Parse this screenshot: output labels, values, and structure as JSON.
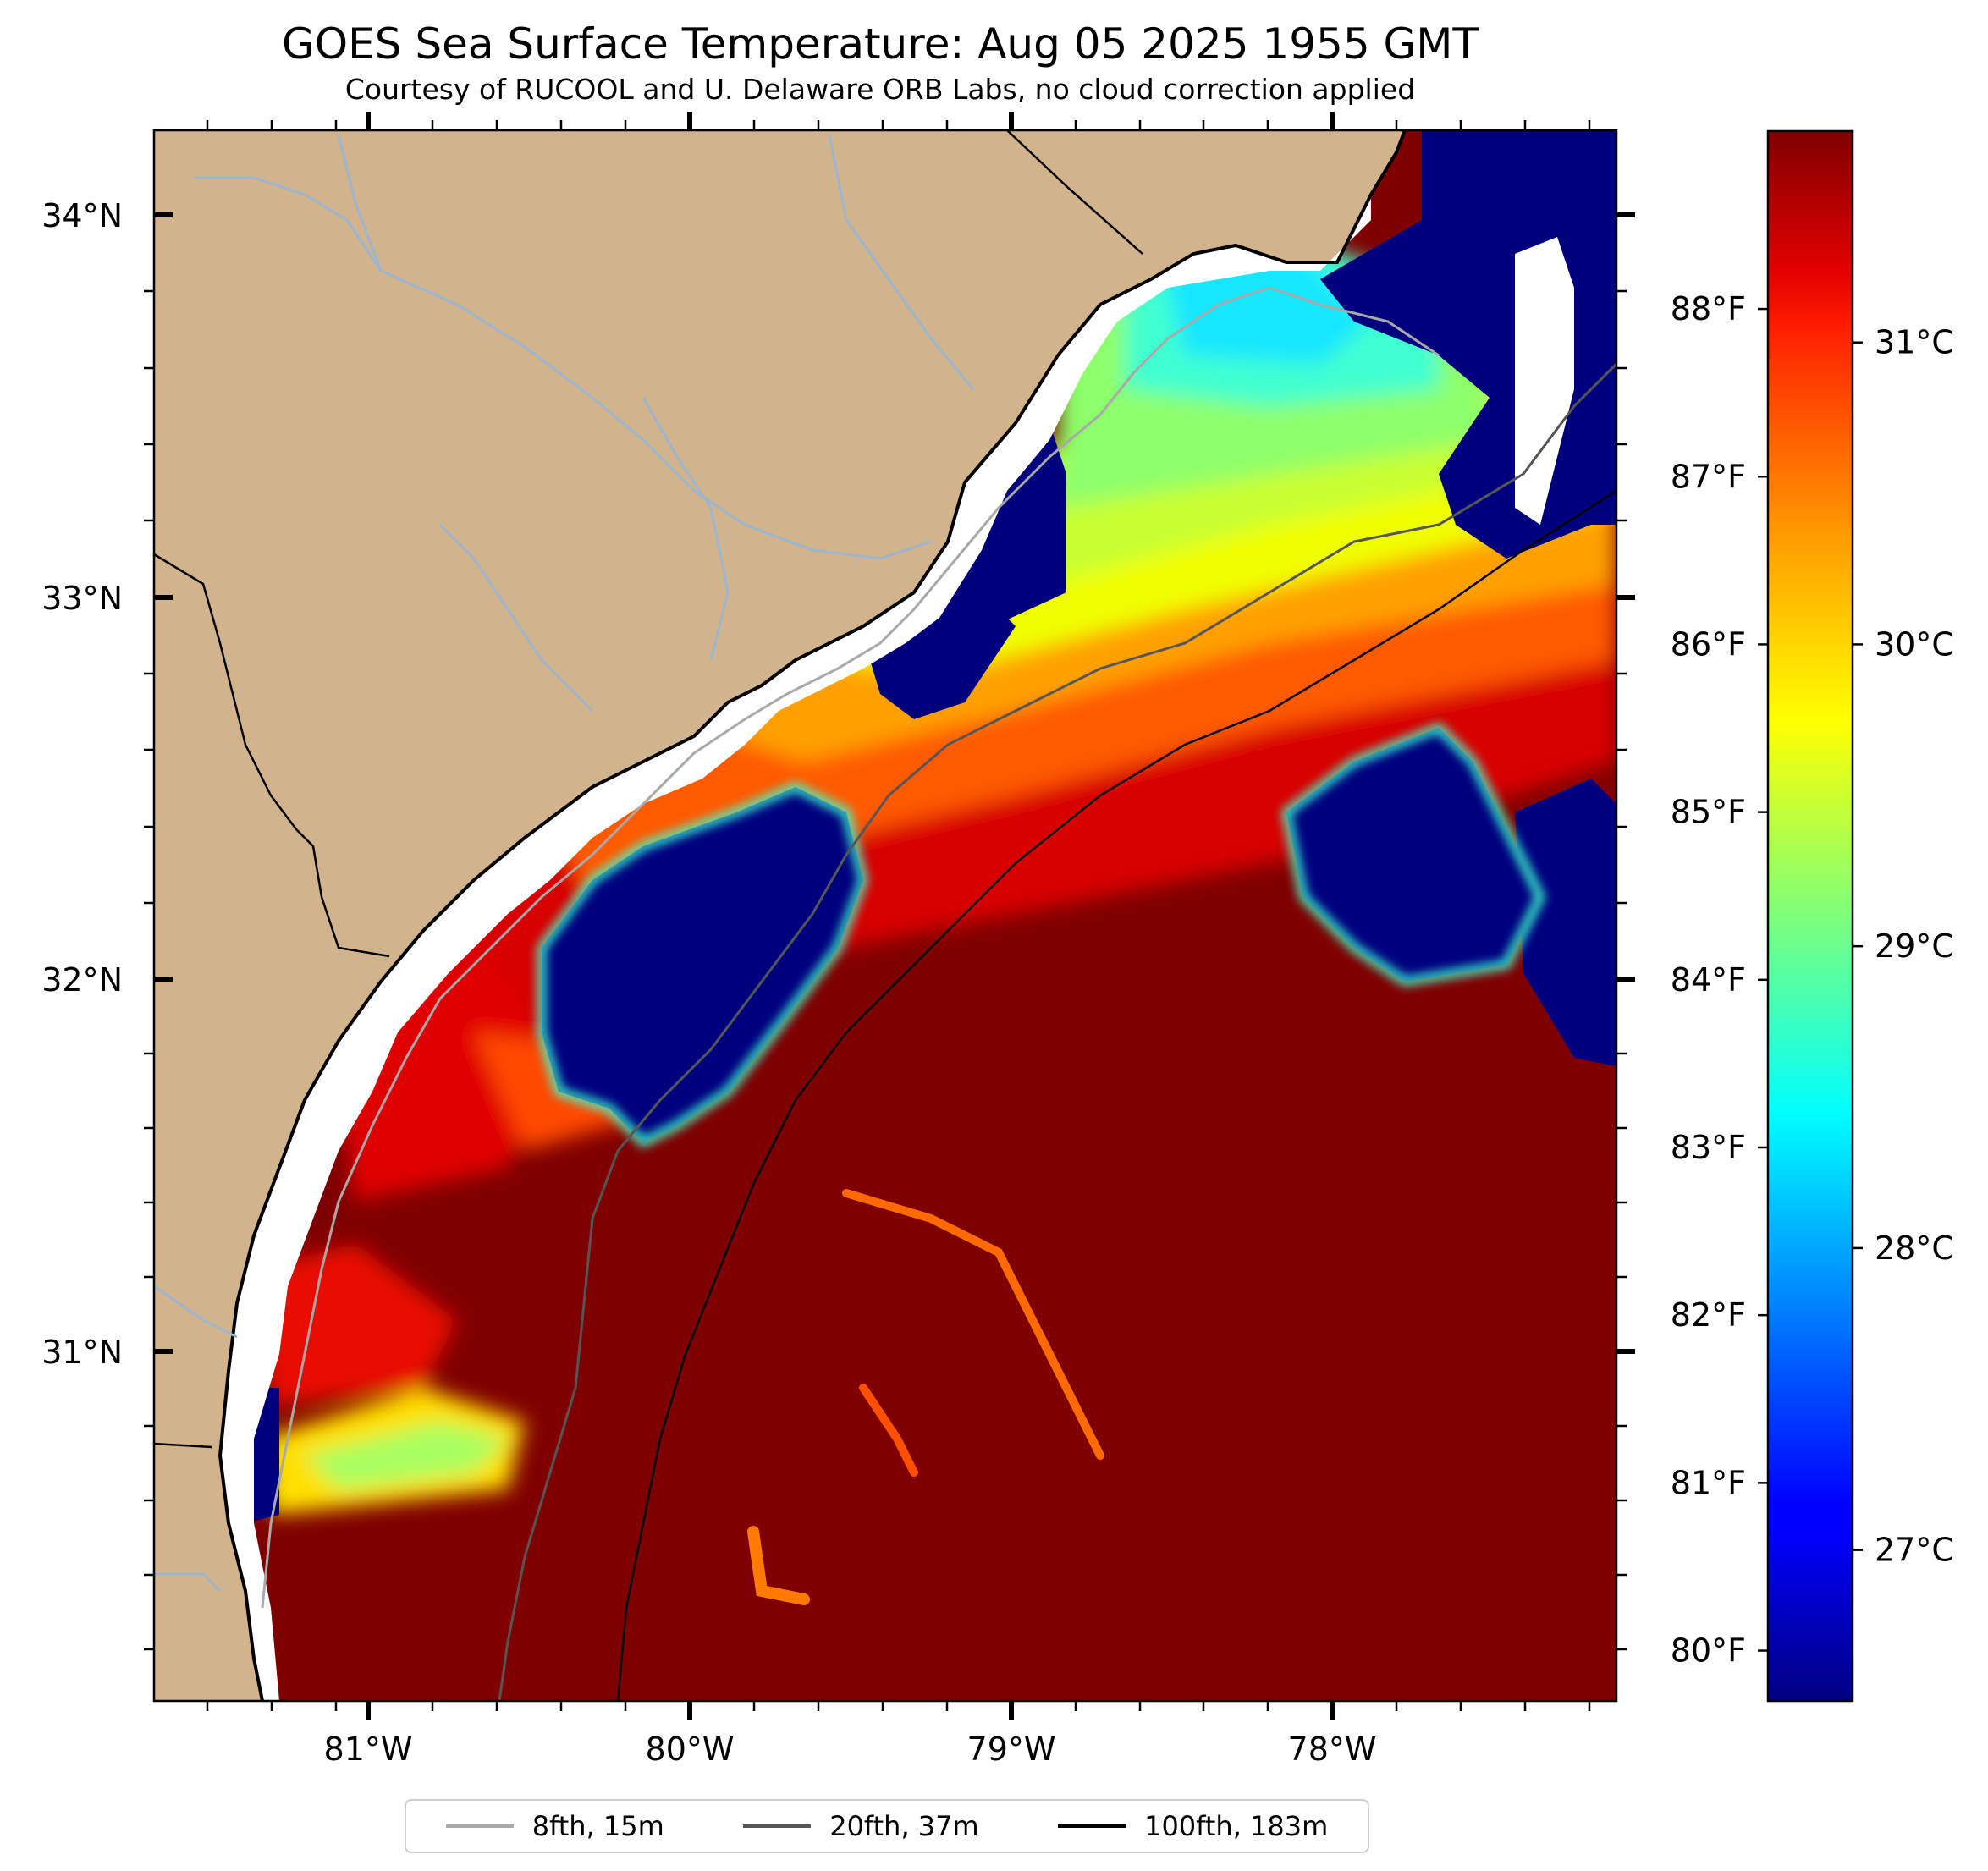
{
  "title": "GOES Sea Surface Temperature: Aug 05 2025 1955 GMT",
  "subtitle": "Courtesy of RUCOOL and U. Delaware ORB Labs, no cloud correction applied",
  "map": {
    "lon_range": [
      -81.67,
      -77.12
    ],
    "lat_range": [
      30.2,
      34.2
    ],
    "lat_labels": [
      "34°N",
      "33°N",
      "32°N",
      "31°N"
    ],
    "lon_labels": [
      "81°W",
      "80°W",
      "79°W",
      "78°W"
    ],
    "land_color": "#d2b48c",
    "river_color": "#9db5cf",
    "colormap": "jet"
  },
  "colorbar": {
    "celsius_labels": [
      "31°C",
      "30°C",
      "29°C",
      "28°C",
      "27°C"
    ],
    "celsius_values": [
      31,
      30,
      29,
      28,
      27
    ],
    "fahrenheit_labels": [
      "88°F",
      "87°F",
      "86°F",
      "85°F",
      "84°F",
      "83°F",
      "82°F",
      "81°F",
      "80°F"
    ],
    "fahrenheit_values": [
      88,
      87,
      86,
      85,
      84,
      83,
      82,
      81,
      80
    ],
    "range_c": [
      26.5,
      31.7
    ]
  },
  "legend": [
    {
      "label": "8fth, 15m",
      "color": "#a9a9a9"
    },
    {
      "label": "20fth, 37m",
      "color": "#555555"
    },
    {
      "label": "100fth, 183m",
      "color": "#000000"
    }
  ]
}
